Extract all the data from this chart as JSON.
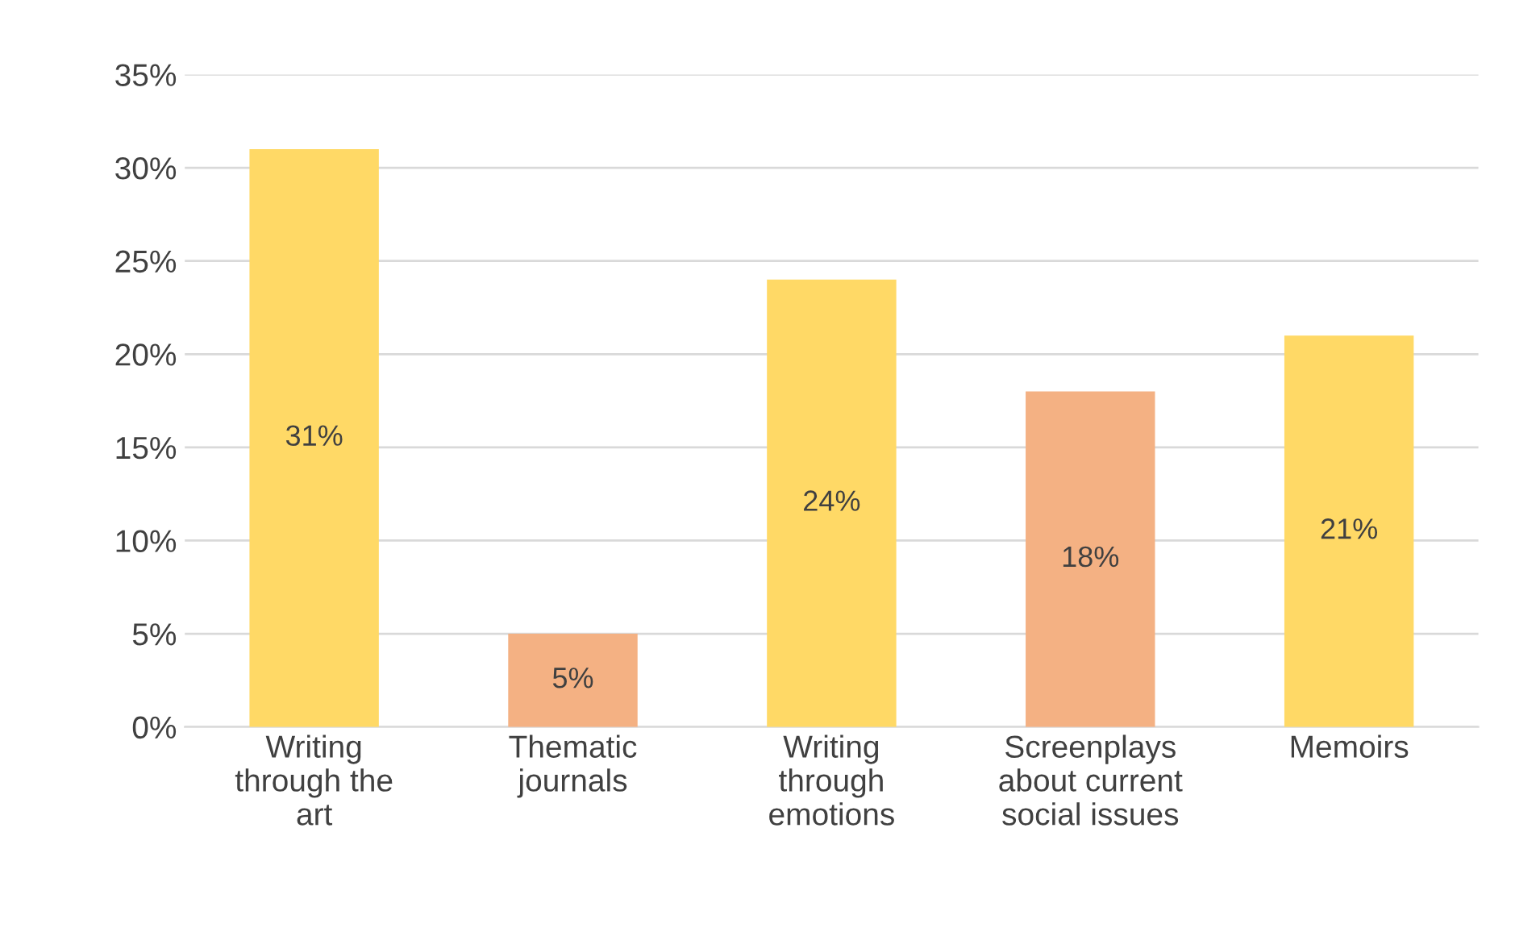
{
  "chart_data": {
    "type": "bar",
    "categories": [
      "Writing\nthrough the\nart",
      "Thematic\njournals",
      "Writing\nthrough\nemotions",
      "Screenplays\nabout current\nsocial issues",
      "Memoirs"
    ],
    "values": [
      31,
      5,
      24,
      18,
      21
    ],
    "colors": [
      "#ffd966",
      "#f4b183",
      "#ffd966",
      "#f4b183",
      "#ffd966"
    ],
    "value_labels": [
      "31%",
      "5%",
      "24%",
      "18%",
      "21%"
    ],
    "ylim": [
      0,
      35
    ],
    "yticks": [
      {
        "value": 0,
        "label": "0%"
      },
      {
        "value": 5,
        "label": "5%"
      },
      {
        "value": 10,
        "label": "10%"
      },
      {
        "value": 15,
        "label": "15%"
      },
      {
        "value": 20,
        "label": "20%"
      },
      {
        "value": 25,
        "label": "25%"
      },
      {
        "value": 30,
        "label": "30%"
      },
      {
        "value": 35,
        "label": "35%"
      }
    ],
    "grid": "y",
    "legend": false
  }
}
